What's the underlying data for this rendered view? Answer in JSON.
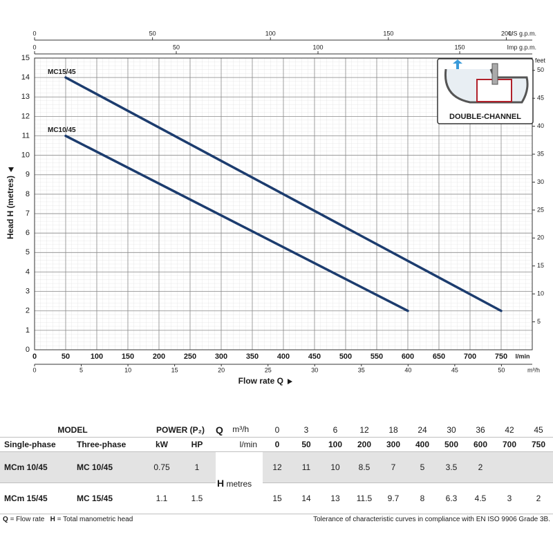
{
  "chart_data": {
    "type": "line",
    "y_label": "Head H  (metres)",
    "x_label": "Flow rate Q",
    "x_unit": "l/min",
    "xlim": [
      0,
      800
    ],
    "xticks": [
      0,
      50,
      100,
      150,
      200,
      250,
      300,
      350,
      400,
      450,
      500,
      550,
      600,
      650,
      700,
      750
    ],
    "ylim": [
      0,
      15
    ],
    "yticks": [
      0,
      1,
      2,
      3,
      4,
      5,
      6,
      7,
      8,
      9,
      10,
      11,
      12,
      13,
      14,
      15
    ],
    "y2_unit": "feet",
    "y2lim": [
      0,
      52.2
    ],
    "y2ticks": [
      5,
      10,
      15,
      20,
      25,
      30,
      35,
      40,
      45,
      50
    ],
    "top_axes": [
      {
        "unit": "US g.p.m.",
        "lim": [
          0,
          211
        ],
        "ticks": [
          0,
          50,
          100,
          150,
          200
        ]
      },
      {
        "unit": "Imp g.p.m.",
        "lim": [
          0,
          175.6
        ],
        "ticks": [
          0,
          50,
          100,
          150
        ]
      }
    ],
    "bottom_axis2": {
      "unit": "m³/h",
      "lim": [
        0,
        53.3
      ],
      "ticks": [
        0,
        5,
        10,
        15,
        20,
        25,
        30,
        35,
        40,
        45,
        50
      ]
    },
    "grid": true,
    "inset_label": "DOUBLE-CHANNEL",
    "series": [
      {
        "name": "MC15/45",
        "color": "#1c3c6e",
        "x": [
          50,
          750
        ],
        "values": [
          14,
          2
        ]
      },
      {
        "name": "MC10/45",
        "color": "#1c3c6e",
        "x": [
          50,
          600
        ],
        "values": [
          11,
          2
        ]
      }
    ]
  },
  "table": {
    "group_headers": [
      "MODEL",
      "POWER (P₂)"
    ],
    "columns": [
      "Single-phase",
      "Three-phase",
      "kW",
      "HP"
    ],
    "q_label": "Q",
    "q_units": [
      "m³/h",
      "l/min"
    ],
    "flow_m3h": [
      0,
      3,
      6,
      12,
      18,
      24,
      30,
      36,
      42,
      45
    ],
    "flow_lmin": [
      0,
      50,
      100,
      200,
      300,
      400,
      500,
      600,
      700,
      750
    ],
    "h_label": "H",
    "h_unit": "metres",
    "rows": [
      {
        "single": "MCm 10/45",
        "three": "MC 10/45",
        "kw": 0.75,
        "hp": 1,
        "head": [
          12,
          11,
          10,
          8.5,
          7,
          5,
          3.5,
          2,
          null,
          null
        ]
      },
      {
        "single": "MCm 15/45",
        "three": "MC 15/45",
        "kw": 1.1,
        "hp": 1.5,
        "head": [
          15,
          14,
          13,
          11.5,
          9.7,
          8,
          6.3,
          4.5,
          3,
          2
        ]
      }
    ]
  },
  "notes": {
    "q_symbol": "Q",
    "q_text": "= Flow rate",
    "h_symbol": "H",
    "h_text": "= Total manometric head",
    "tolerance": "Tolerance of characteristic curves in compliance with EN ISO 9906 Grade 3B."
  }
}
